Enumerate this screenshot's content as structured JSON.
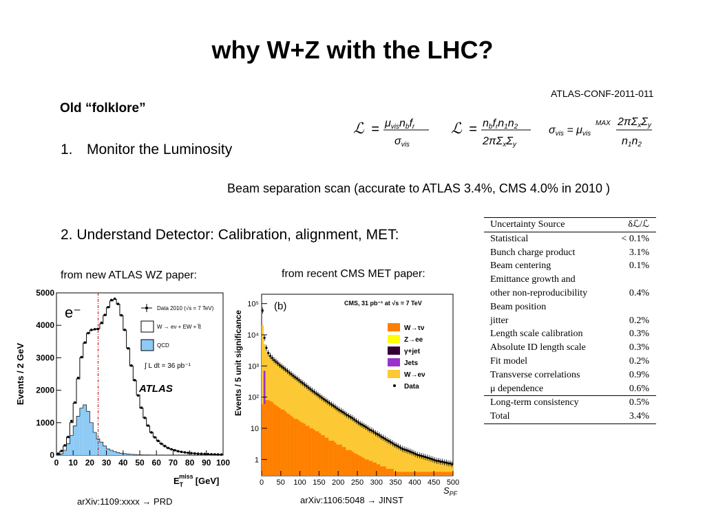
{
  "slide": {
    "title": "why W+Z with the LHC?",
    "atlas_conf": "ATLAS-CONF-2011-011",
    "folklore": "Old “folklore”",
    "item1_num": "1.",
    "item1_text": "Monitor the Luminosity",
    "beam_scan": "Beam separation scan (accurate to ATLAS 3.4%, CMS 4.0% in 2010 )",
    "item2": "2.  Understand Detector: Calibration, alignment, MET:",
    "from_atlas": "from new ATLAS WZ paper:",
    "from_cms": "from recent CMS MET paper:",
    "arxiv1": "arXiv:1109:xxxx → PRD",
    "arxiv2": "arXiv:1106:5048 → JINST"
  },
  "table": {
    "header": [
      "Uncertainty Source",
      "δℒ/ℒ"
    ],
    "rows": [
      [
        "Statistical",
        "< 0.1%"
      ],
      [
        "Bunch charge product",
        "3.1%"
      ],
      [
        "Beam centering",
        "0.1%"
      ],
      [
        "Emittance growth and",
        ""
      ],
      [
        "other non-reproducibility",
        "0.4%"
      ],
      [
        "Beam position",
        ""
      ],
      [
        "jitter",
        "0.2%"
      ],
      [
        "Length scale calibration",
        "0.3%"
      ],
      [
        "Absolute ID length scale",
        "0.3%"
      ],
      [
        "Fit model",
        "0.2%"
      ],
      [
        "Transverse correlations",
        "0.9%"
      ],
      [
        "μ dependence",
        "0.6%"
      ],
      [
        "Long-term consistency",
        "0.5%"
      ],
      [
        "Total",
        "3.4%"
      ]
    ]
  },
  "chart_data": [
    {
      "type": "bar",
      "ylabel": "Events / 2 GeV",
      "xlabel": "E_T^miss [GeV]",
      "xlim": [
        0,
        100
      ],
      "ylim": [
        0,
        5000
      ],
      "xticks": [
        0,
        10,
        20,
        30,
        40,
        50,
        60,
        70,
        80,
        90,
        100
      ],
      "yticks": [
        0,
        1000,
        2000,
        3000,
        4000,
        5000
      ],
      "tag": "e⁻",
      "legend": [
        "Data 2010 (√s = 7 TeV)",
        "W → eν + EW + t̅t",
        "QCD",
        "∫ L dt = 36 pb⁻¹"
      ],
      "atlas_label": "ATLAS",
      "cut_line_x": 25,
      "x": [
        1,
        3,
        5,
        7,
        9,
        11,
        13,
        15,
        17,
        19,
        21,
        23,
        25,
        27,
        29,
        31,
        33,
        35,
        37,
        39,
        41,
        43,
        45,
        47,
        49,
        51,
        53,
        55,
        57,
        59,
        61,
        63,
        65,
        67,
        69,
        71,
        73,
        75,
        77,
        79,
        81,
        83,
        85,
        87,
        89,
        91,
        93,
        95,
        97,
        99
      ],
      "series": [
        {
          "name": "W → eν + EW + t̅t",
          "values": [
            40,
            120,
            280,
            550,
            1000,
            1600,
            2350,
            3000,
            3450,
            3750,
            3850,
            3870,
            3900,
            4050,
            4300,
            4550,
            4750,
            4800,
            4650,
            4300,
            3850,
            3300,
            2750,
            2300,
            1850,
            1450,
            1150,
            900,
            700,
            550,
            440,
            350,
            280,
            220,
            180,
            150,
            120,
            100,
            85,
            70,
            60,
            52,
            45,
            40,
            35,
            30,
            26,
            23,
            20,
            18
          ]
        },
        {
          "name": "QCD",
          "values": [
            5,
            40,
            150,
            350,
            600,
            900,
            1200,
            1450,
            1550,
            1350,
            1000,
            700,
            500,
            400,
            280,
            190,
            150,
            110,
            80,
            60,
            45,
            35,
            25,
            18,
            12,
            9,
            7,
            5,
            4,
            3,
            2,
            2,
            1,
            1,
            1,
            1,
            0,
            0,
            0,
            0,
            0,
            0,
            0,
            0,
            0,
            0,
            0,
            0,
            0,
            0
          ]
        },
        {
          "name": "Data 2010 (√s = 7 TeV)",
          "values": [
            45,
            130,
            300,
            560,
            1050,
            1620,
            2380,
            3020,
            3470,
            3760,
            3860,
            3880,
            3890,
            4080,
            4320,
            4560,
            4780,
            4820,
            4660,
            4310,
            3860,
            3290,
            2760,
            2310,
            1840,
            1460,
            1150,
            910,
            700,
            550,
            440,
            350,
            280,
            220,
            180,
            150,
            120,
            100,
            85,
            70,
            60,
            52,
            45,
            40,
            35,
            30,
            26,
            23,
            20,
            18
          ]
        }
      ]
    },
    {
      "type": "bar",
      "ylabel": "Events / 5 unit significance",
      "xlabel": "S_PF",
      "ylog": true,
      "xlim": [
        0,
        500
      ],
      "ylim": [
        0.3,
        200000
      ],
      "xticks": [
        0,
        50,
        100,
        150,
        200,
        250,
        300,
        350,
        400,
        450,
        500
      ],
      "yticks": [
        "1",
        "10",
        "10²",
        "10³",
        "10⁴",
        "10⁵"
      ],
      "panel": "(b)",
      "header": "CMS, 31 pb⁻¹  at  √s = 7 TeV",
      "legend": [
        {
          "name": "W→τν",
          "color": "#ff7f00"
        },
        {
          "name": "Z→ee",
          "color": "#ffff00"
        },
        {
          "name": "γ+jet",
          "color": "#330033"
        },
        {
          "name": "Jets",
          "color": "#9933cc"
        },
        {
          "name": "W→eν",
          "color": "#fcc934"
        },
        {
          "name": "Data",
          "color": "#000000"
        }
      ],
      "x": [
        2.5,
        7.5,
        12.5,
        17.5,
        22.5,
        27.5,
        32.5,
        37.5,
        42.5,
        47.5,
        52.5,
        57.5,
        62.5,
        67.5,
        72.5,
        77.5,
        82.5,
        87.5,
        92.5,
        97.5,
        102.5,
        107.5,
        112.5,
        117.5,
        122.5,
        127.5,
        132.5,
        137.5,
        142.5,
        147.5,
        152.5,
        157.5,
        162.5,
        167.5,
        172.5,
        177.5,
        182.5,
        187.5,
        192.5,
        197.5,
        202.5,
        207.5,
        212.5,
        217.5,
        222.5,
        227.5,
        232.5,
        237.5,
        242.5,
        247.5,
        252.5,
        257.5,
        262.5,
        267.5,
        272.5,
        277.5,
        282.5,
        287.5,
        292.5,
        297.5,
        302.5,
        307.5,
        312.5,
        317.5,
        322.5,
        327.5,
        332.5,
        337.5,
        342.5,
        347.5,
        352.5,
        357.5,
        362.5,
        367.5,
        372.5,
        377.5,
        382.5,
        387.5,
        392.5,
        397.5,
        402.5,
        407.5,
        412.5,
        417.5,
        422.5,
        427.5,
        432.5,
        437.5,
        442.5,
        447.5,
        452.5,
        457.5,
        462.5,
        467.5,
        472.5,
        477.5,
        482.5,
        487.5,
        492.5,
        497.5
      ],
      "series": [
        {
          "name": "W→τν",
          "values": [
            60,
            70,
            80,
            80,
            75,
            70,
            60,
            55,
            50,
            45,
            40,
            40,
            35,
            30,
            28,
            25,
            22,
            20,
            20,
            18,
            16,
            15,
            14,
            12,
            12,
            10,
            10,
            9,
            8,
            8,
            7,
            6,
            6,
            5,
            5,
            4,
            4,
            4,
            3.5,
            3,
            3,
            3,
            2.5,
            2.5,
            2,
            2,
            2,
            1.8,
            1.6,
            1.5,
            1.4,
            1.3,
            1.2,
            1.1,
            1,
            1,
            0.9,
            0.9,
            0.8,
            0.8,
            0.7,
            0.7,
            0.6,
            0.6,
            0.6,
            0.5,
            0.5,
            0.5,
            0.5,
            0.4,
            0.4,
            0.4,
            0.4,
            0.4,
            0.4,
            0.4,
            0.4,
            0.4,
            0.4,
            0.4,
            0.4,
            0.4,
            0.4,
            0.4,
            0.4,
            0.4,
            0.4,
            0.4,
            0.4,
            0.4,
            0.4,
            0.4,
            0.4,
            0.4,
            0.4,
            0.4,
            0.4,
            0.4,
            0.4,
            0.4
          ]
        },
        {
          "name": "W→eν",
          "values": [
            20000,
            5000,
            3000,
            2200,
            1900,
            1700,
            1500,
            1350,
            1200,
            1050,
            950,
            850,
            760,
            680,
            600,
            540,
            480,
            430,
            390,
            350,
            310,
            280,
            250,
            225,
            200,
            180,
            160,
            145,
            130,
            118,
            105,
            95,
            85,
            77,
            70,
            63,
            57,
            52,
            47,
            42,
            38,
            35,
            32,
            29,
            26,
            24,
            22,
            20,
            18,
            16.5,
            15,
            13.5,
            12.5,
            11.5,
            10.5,
            9.5,
            8.7,
            8,
            7.3,
            6.7,
            6.1,
            5.6,
            5.1,
            4.7,
            4.3,
            4,
            3.7,
            3.4,
            3.1,
            2.9,
            2.7,
            2.5,
            2.3,
            2.1,
            2,
            1.9,
            1.8,
            1.7,
            1.6,
            1.5,
            1.4,
            1.35,
            1.3,
            1.25,
            1.2,
            1.15,
            1.1,
            1.05,
            1,
            0.95,
            0.9,
            0.9,
            0.85,
            0.85,
            0.8,
            0.8,
            0.75,
            0.75,
            0.7,
            0.7
          ]
        },
        {
          "name": "Data",
          "values": [
            60000,
            8000,
            3800,
            2600,
            2100,
            1800,
            1550,
            1380,
            1220,
            1070,
            960,
            860,
            770,
            690,
            610,
            545,
            485,
            435,
            395,
            352,
            312,
            282,
            252,
            226,
            201,
            181,
            161,
            146,
            131,
            119,
            106,
            96,
            86,
            78,
            71,
            64,
            58,
            53,
            48,
            43,
            39,
            36,
            33,
            30,
            27,
            25,
            23,
            21,
            19,
            17,
            15.5,
            14,
            13,
            12,
            11,
            10,
            9,
            8.5,
            7.8,
            7,
            6.5,
            6,
            5.4,
            5,
            4.6,
            4.2,
            3.9,
            3.6,
            3.3,
            3,
            2.8,
            2.6,
            2.4,
            2.2,
            2.1,
            2,
            1.9,
            1.8,
            1.7,
            1.6,
            1.5,
            1.4,
            1.35,
            1.3,
            1.25,
            1.2,
            1.15,
            1.1,
            1.05,
            1,
            0.95,
            0.9,
            0.9,
            0.85,
            0.85,
            0.8,
            0.8,
            0.75,
            0.75,
            0.7
          ]
        }
      ]
    }
  ]
}
